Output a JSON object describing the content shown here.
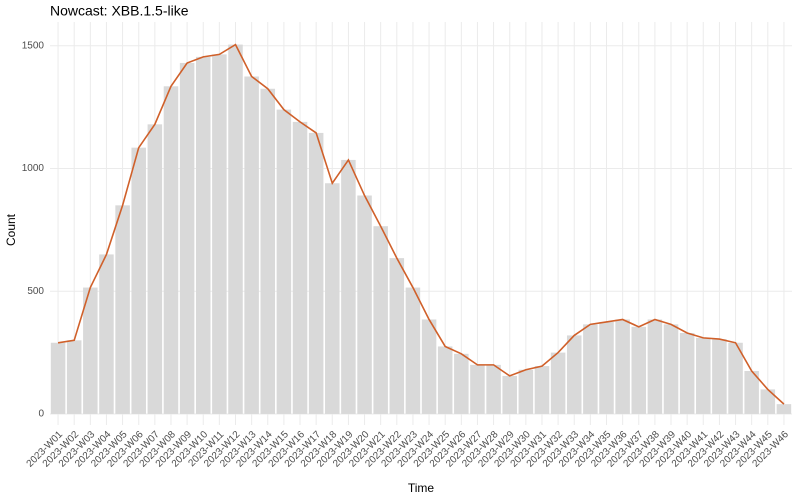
{
  "chart_data": {
    "type": "bar-line",
    "title": "Nowcast: XBB.1.5-like",
    "x_label": "Time",
    "y_label": "Count",
    "categories": [
      "2023-W01",
      "2023-W02",
      "2023-W03",
      "2023-W04",
      "2023-W05",
      "2023-W06",
      "2023-W07",
      "2023-W08",
      "2023-W09",
      "2023-W10",
      "2023-W11",
      "2023-W12",
      "2023-W13",
      "2023-W14",
      "2023-W15",
      "2023-W16",
      "2023-W17",
      "2023-W18",
      "2023-W19",
      "2023-W20",
      "2023-W21",
      "2023-W22",
      "2023-W23",
      "2023-W24",
      "2023-W25",
      "2023-W26",
      "2023-W27",
      "2023-W28",
      "2023-W29",
      "2023-W30",
      "2023-W31",
      "2023-W32",
      "2023-W33",
      "2023-W34",
      "2023-W35",
      "2023-W36",
      "2023-W37",
      "2023-W38",
      "2023-W39",
      "2023-W40",
      "2023-W41",
      "2023-W42",
      "2023-W43",
      "2023-W44",
      "2023-W45",
      "2023-W46"
    ],
    "bar_color": "#d9d9d9",
    "bar_values": [
      290,
      300,
      515,
      650,
      850,
      1085,
      1180,
      1335,
      1430,
      1455,
      1465,
      1505,
      1375,
      1325,
      1240,
      1190,
      1145,
      940,
      1035,
      890,
      765,
      635,
      515,
      385,
      275,
      245,
      200,
      200,
      155,
      180,
      195,
      250,
      320,
      365,
      375,
      385,
      355,
      385,
      365,
      330,
      310,
      305,
      290,
      175,
      100,
      40
    ],
    "line_color": "#d0602a",
    "line_values": [
      290,
      300,
      515,
      650,
      850,
      1085,
      1180,
      1335,
      1430,
      1455,
      1465,
      1505,
      1375,
      1325,
      1240,
      1190,
      1145,
      940,
      1035,
      890,
      765,
      635,
      515,
      385,
      275,
      245,
      200,
      200,
      155,
      180,
      195,
      250,
      320,
      365,
      375,
      385,
      355,
      385,
      365,
      330,
      310,
      305,
      290,
      175,
      100,
      40
    ],
    "ylim": [
      -45,
      1597
    ],
    "yticks": [
      0,
      500,
      1000,
      1500
    ],
    "grid": true
  }
}
